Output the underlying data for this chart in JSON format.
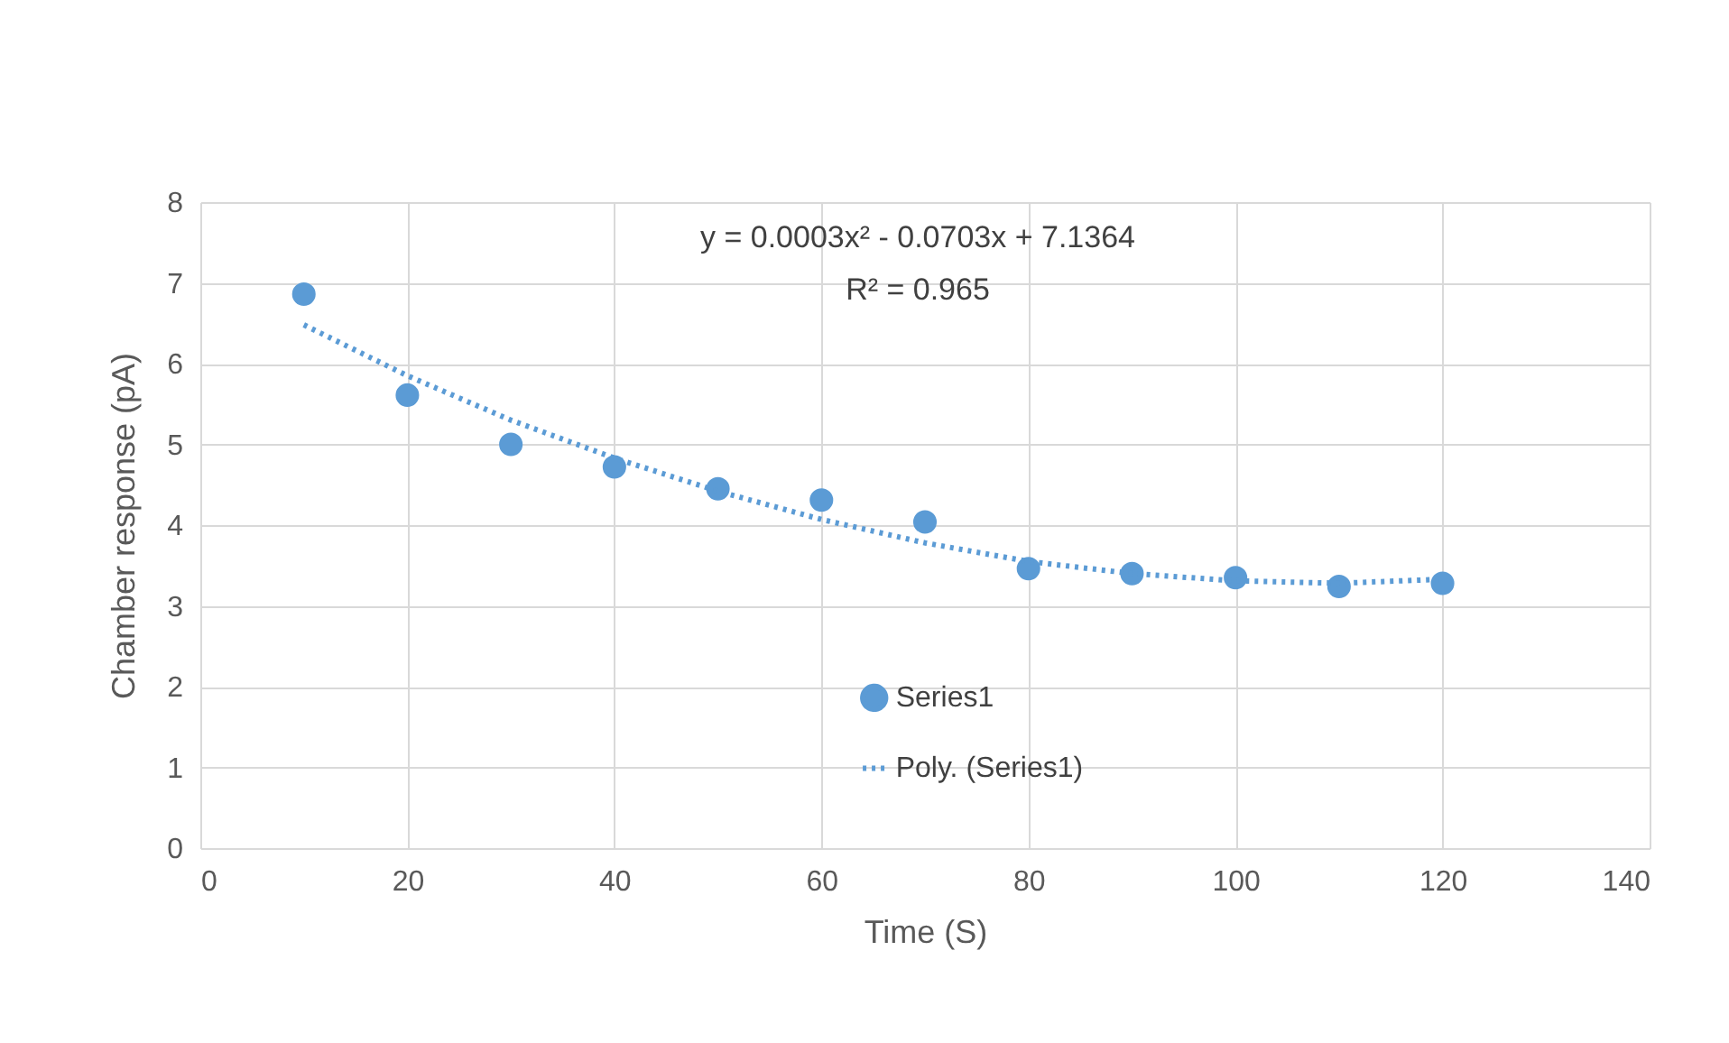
{
  "chart_data": {
    "type": "scatter",
    "xlabel": "Time (S)",
    "ylabel": "Chamber response (pA)",
    "x": [
      10,
      20,
      30,
      40,
      50,
      60,
      70,
      80,
      90,
      100,
      110,
      120
    ],
    "series": [
      {
        "name": "Series1",
        "color": "#5b9bd5",
        "marker": "circle",
        "values": [
          6.86,
          5.61,
          5.0,
          4.72,
          4.45,
          4.31,
          4.04,
          3.46,
          3.4,
          3.35,
          3.24,
          3.28
        ]
      },
      {
        "name": "Poly. (Series1)",
        "type": "line",
        "color": "#5b9bd5",
        "line_style": "dotted",
        "x": [
          10,
          20,
          30,
          40,
          50,
          60,
          70,
          80,
          90,
          100,
          110,
          120
        ],
        "values": [
          6.48,
          5.85,
          5.3,
          4.83,
          4.42,
          4.07,
          3.78,
          3.55,
          3.4,
          3.31,
          3.28,
          3.33
        ]
      }
    ],
    "xlim": [
      0,
      140
    ],
    "xticks": [
      0,
      20,
      40,
      60,
      80,
      100,
      120,
      140
    ],
    "ylim": [
      0,
      8
    ],
    "yticks": [
      0,
      1,
      2,
      3,
      4,
      5,
      6,
      7,
      8
    ],
    "grid": true,
    "legend": "bottom",
    "annotations": [
      "y = 0.0003x² - 0.0703x + 7.1364",
      "R² = 0.965"
    ]
  }
}
